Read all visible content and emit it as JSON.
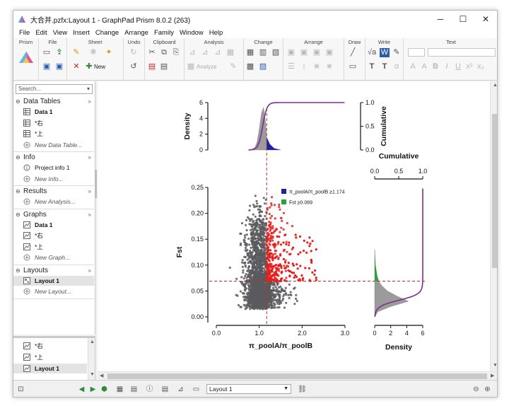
{
  "window": {
    "title": "大合并.pzfx:Layout 1 - GraphPad Prism 8.0.2 (263)",
    "controls": {
      "minimize": "─",
      "maximize": "☐",
      "close": "✕"
    }
  },
  "menu": [
    "File",
    "Edit",
    "View",
    "Insert",
    "Change",
    "Arrange",
    "Family",
    "Window",
    "Help"
  ],
  "ribbon": {
    "groups": [
      "Prism",
      "File",
      "Sheet",
      "Undo",
      "Clipboard",
      "Analysis",
      "Change",
      "Arrange",
      "Draw",
      "Write",
      "Text"
    ],
    "new_label": "New",
    "analyze_label": "Analyze"
  },
  "navigator": {
    "search_placeholder": "Search...",
    "sections": [
      {
        "title": "Data Tables",
        "items": [
          {
            "label": "Data 1",
            "bold": true
          },
          {
            "label": "*右"
          },
          {
            "label": "*上"
          },
          {
            "label": "New Data Table...",
            "new": true
          }
        ]
      },
      {
        "title": "Info",
        "items": [
          {
            "label": "Project info 1"
          },
          {
            "label": "New Info...",
            "new": true
          }
        ]
      },
      {
        "title": "Results",
        "items": [
          {
            "label": "New Analysis...",
            "new": true
          }
        ]
      },
      {
        "title": "Graphs",
        "items": [
          {
            "label": "Data 1",
            "bold": true
          },
          {
            "label": "*右"
          },
          {
            "label": "*上"
          },
          {
            "label": "New Graph...",
            "new": true
          }
        ]
      },
      {
        "title": "Layouts",
        "items": [
          {
            "label": "Layout 1",
            "bold": true,
            "selected": true
          },
          {
            "label": "New Layout...",
            "new": true
          }
        ]
      }
    ],
    "thumbs": [
      "*右",
      "*上",
      "Layout 1"
    ]
  },
  "status": {
    "layout_selected": "Layout 1"
  },
  "colors": {
    "scatter": "#5b5b5e",
    "highlight": "#e51e1e",
    "curve": "#7a2e92",
    "legend_a": "#1f1fa8",
    "legend_b": "#27a33a",
    "threshold": "#b0322c"
  },
  "chart_data": [
    {
      "type": "scatter",
      "xlabel": "π_poolA/π_poolB",
      "ylabel": "Fst",
      "xlim": [
        0.0,
        3.0
      ],
      "ylim": [
        0.0,
        0.25
      ],
      "xticks": [
        "0.0",
        "1.0",
        "2.0",
        "3.0"
      ],
      "yticks": [
        "0.00",
        "0.05",
        "0.10",
        "0.15",
        "0.20",
        "0.25"
      ],
      "thresholds": {
        "x": 1.174,
        "y": 0.069
      },
      "legend": [
        {
          "label": "π_poolA/π_poolB ≥1.174",
          "color": "#1f1fa8"
        },
        {
          "label": "Fst ≥0.069",
          "color": "#27a33a"
        }
      ],
      "legend_position": "top-right"
    },
    {
      "type": "area",
      "position": "top-marginal",
      "ylabel": "Density",
      "ylim": [
        0,
        6
      ],
      "yticks": [
        "0",
        "2",
        "4",
        "6"
      ],
      "y2label": "Cumulative",
      "y2lim": [
        0.0,
        1.0
      ],
      "y2ticks": [
        "0.0",
        "0.5",
        "1.0"
      ],
      "density_x": [
        0.8,
        0.9,
        0.95,
        1.0,
        1.05,
        1.1,
        1.15,
        1.174,
        1.25,
        1.35,
        1.5
      ],
      "density_y": [
        0.0,
        0.3,
        1.0,
        2.6,
        4.6,
        5.4,
        3.4,
        1.6,
        0.7,
        0.2,
        0.0
      ]
    },
    {
      "type": "area",
      "position": "right-marginal",
      "xlabel": "Density",
      "xlim": [
        0,
        6
      ],
      "xticks": [
        "0",
        "2",
        "4",
        "6"
      ],
      "x2label": "Cumulative",
      "x2lim": [
        0.0,
        1.0
      ],
      "x2ticks": [
        "0.0",
        "0.5",
        "1.0"
      ],
      "density_y": [
        0.0,
        0.01,
        0.02,
        0.03,
        0.04,
        0.05,
        0.06,
        0.069,
        0.08,
        0.1,
        0.13
      ],
      "density_x": [
        0.0,
        0.4,
        2.0,
        4.2,
        2.8,
        1.6,
        0.9,
        0.5,
        0.3,
        0.1,
        0.0
      ]
    }
  ]
}
